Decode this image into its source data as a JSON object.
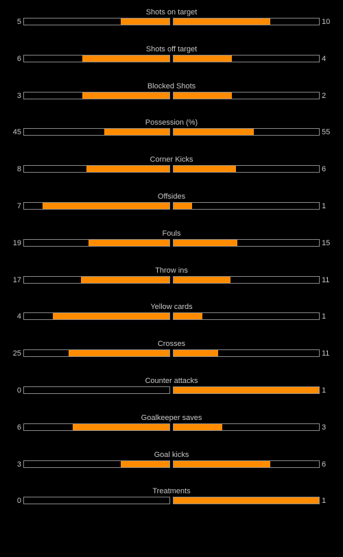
{
  "colors": {
    "background": "#000000",
    "bar_fill": "#ff8c00",
    "bar_border": "#8c8c8c",
    "text": "#c8c8c8"
  },
  "stats": [
    {
      "label": "Shots on target",
      "home": "5",
      "away": "10",
      "home_share": 0.333,
      "away_share": 0.667
    },
    {
      "label": "Shots off target",
      "home": "6",
      "away": "4",
      "home_share": 0.6,
      "away_share": 0.4
    },
    {
      "label": "Blocked Shots",
      "home": "3",
      "away": "2",
      "home_share": 0.6,
      "away_share": 0.4
    },
    {
      "label": "Possession (%)",
      "home": "45",
      "away": "55",
      "home_share": 0.45,
      "away_share": 0.55
    },
    {
      "label": "Corner Kicks",
      "home": "8",
      "away": "6",
      "home_share": 0.571,
      "away_share": 0.429
    },
    {
      "label": "Offsides",
      "home": "7",
      "away": "1",
      "home_share": 0.875,
      "away_share": 0.125
    },
    {
      "label": "Fouls",
      "home": "19",
      "away": "15",
      "home_share": 0.559,
      "away_share": 0.441
    },
    {
      "label": "Throw ins",
      "home": "17",
      "away": "11",
      "home_share": 0.607,
      "away_share": 0.393
    },
    {
      "label": "Yellow cards",
      "home": "4",
      "away": "1",
      "home_share": 0.8,
      "away_share": 0.2
    },
    {
      "label": "Crosses",
      "home": "25",
      "away": "11",
      "home_share": 0.694,
      "away_share": 0.306
    },
    {
      "label": "Counter attacks",
      "home": "0",
      "away": "1",
      "home_share": 0.0,
      "away_share": 1.0
    },
    {
      "label": "Goalkeeper saves",
      "home": "6",
      "away": "3",
      "home_share": 0.667,
      "away_share": 0.333
    },
    {
      "label": "Goal kicks",
      "home": "3",
      "away": "6",
      "home_share": 0.333,
      "away_share": 0.667
    },
    {
      "label": "Treatments",
      "home": "0",
      "away": "1",
      "home_share": 0.0,
      "away_share": 1.0
    }
  ]
}
